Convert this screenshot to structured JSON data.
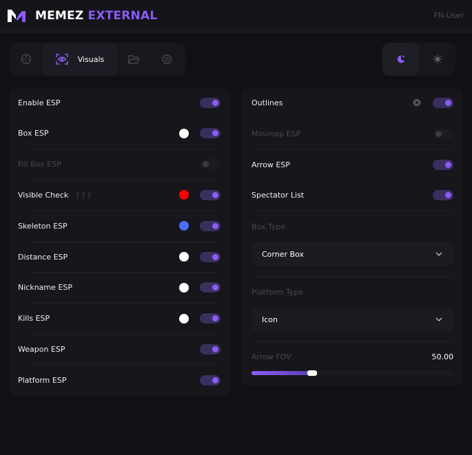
{
  "header": {
    "brand_main": "MEMEZ",
    "brand_accent": "EXTERNAL",
    "user": "FN-User"
  },
  "tabs": [
    {
      "icon": "crosshair-icon"
    },
    {
      "icon": "eye-scan-icon",
      "label": "Visuals",
      "active": true
    },
    {
      "icon": "folder-icon"
    },
    {
      "icon": "gear-icon"
    }
  ],
  "theme": {
    "selected": "dark",
    "options": [
      "moon-icon",
      "sun-icon"
    ]
  },
  "colors": {
    "accent": "#8b5cf6"
  },
  "left": [
    {
      "label": "Enable ESP",
      "on": true
    },
    {
      "label": "Box ESP",
      "on": true,
      "color": "#ffffff"
    },
    {
      "label": "Fill Box ESP",
      "on": false,
      "disabled": true
    },
    {
      "label": "Visible Check",
      "help": "[ ? ]",
      "on": true,
      "color": "#ff0000"
    },
    {
      "label": "Skeleton ESP",
      "on": true,
      "color": "#4f6cf7"
    },
    {
      "label": "Distance ESP",
      "on": true,
      "color": "#ffffff"
    },
    {
      "label": "Nickname ESP",
      "on": true,
      "color": "#ffffff"
    },
    {
      "label": "Kills ESP",
      "on": true,
      "color": "#ffffff"
    },
    {
      "label": "Weapon ESP",
      "on": true
    },
    {
      "label": "Platform ESP",
      "on": true
    }
  ],
  "right": {
    "toggles": [
      {
        "label": "Outlines",
        "on": true,
        "settings": true
      },
      {
        "label": "Minimap ESP",
        "on": false,
        "disabled": true
      },
      {
        "label": "Arrow ESP",
        "on": true
      },
      {
        "label": "Spectator List",
        "on": true
      }
    ],
    "box_type": {
      "label": "Box Type",
      "value": "Corner Box"
    },
    "platform_type": {
      "label": "Platform Type",
      "value": "Icon"
    },
    "arrow_fov": {
      "label": "Arrow FOV",
      "value": "50.00",
      "fill_percent": 30
    }
  }
}
